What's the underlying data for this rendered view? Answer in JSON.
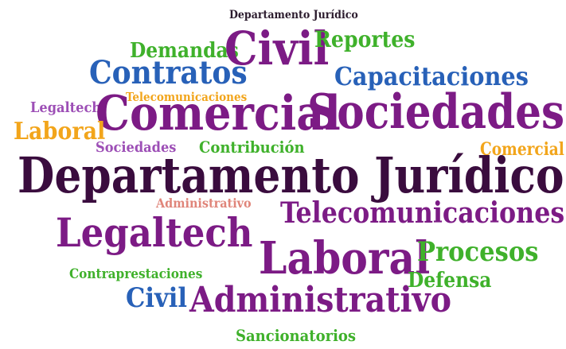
{
  "words": {
    "w01": "Departamento Jurídico",
    "w02": "Demandas",
    "w03": "Civil",
    "w04": "Reportes",
    "w05": "Contratos",
    "w06": "Capacitaciones",
    "w07": "Legaltech",
    "w08": "Telecomunicaciones",
    "w09": "Comercial",
    "w10": "Sociedades",
    "w11": "Laboral",
    "w12": "Sociedades",
    "w13": "Contribución",
    "w14": "Comercial",
    "w15": "Departamento Jurídico",
    "w16": "Administrativo",
    "w17": "Telecomunicaciones",
    "w18": "Legaltech",
    "w19": "Laboral",
    "w20": "Procesos",
    "w21": "Contraprestaciones",
    "w22": "Defensa",
    "w23": "Civil",
    "w24": "Administrativo",
    "w25": "Sancionatorios"
  }
}
